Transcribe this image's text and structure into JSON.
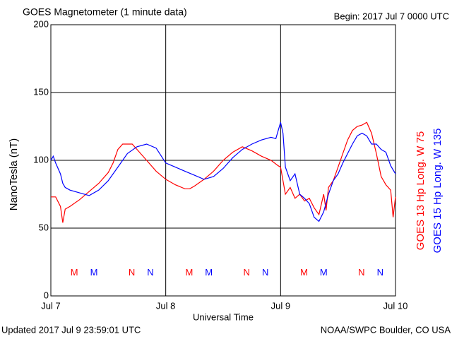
{
  "chart_data": {
    "type": "line",
    "title": "GOES Magnetometer (1 minute data)",
    "subtitle": "Begin:  2017 Jul 7 0000 UTC",
    "xlabel": "Universal Time",
    "ylabel": "NanoTesla (nT)",
    "footer_left": "Updated 2017 Jul  9 23:59:01 UTC",
    "footer_right": "NOAA/SWPC Boulder, CO USA",
    "xlim": [
      0,
      72
    ],
    "xticks": [
      {
        "value": 0,
        "label": "Jul 7"
      },
      {
        "value": 24,
        "label": "Jul 8"
      },
      {
        "value": 48,
        "label": "Jul 9"
      },
      {
        "value": 72,
        "label": "Jul 10"
      }
    ],
    "ylim": [
      0,
      200
    ],
    "yticks": [
      0,
      50,
      100,
      150,
      200
    ],
    "grid": true,
    "series": [
      {
        "name": "GOES 13 Hp  Long. W 75",
        "color": "#ff0000",
        "x": [
          0,
          1,
          2,
          2.5,
          3,
          4,
          6,
          8,
          10,
          12,
          13,
          14,
          15,
          16,
          17,
          18,
          20,
          22,
          24,
          26,
          28,
          29,
          30,
          32,
          34,
          36,
          38,
          40,
          42,
          44,
          46,
          47.5,
          48,
          49,
          50,
          51,
          52,
          53,
          54,
          55,
          56,
          57,
          57.5,
          58,
          59,
          60,
          61,
          62,
          63,
          64,
          65,
          66,
          67,
          68,
          69,
          70,
          71,
          71.5,
          72
        ],
        "values": [
          73,
          73,
          66,
          54,
          64,
          66,
          71,
          77,
          83,
          91,
          98,
          108,
          112,
          112,
          112,
          108,
          100,
          92,
          86,
          82,
          79,
          79,
          81,
          86,
          92,
          100,
          106,
          110,
          107,
          103,
          100,
          96,
          95,
          75,
          80,
          72,
          75,
          70,
          72,
          65,
          60,
          75,
          63,
          80,
          85,
          95,
          105,
          115,
          122,
          125,
          126,
          128,
          120,
          105,
          88,
          82,
          78,
          58,
          73
        ]
      },
      {
        "name": "GOES 15 Hp  Long. W 135",
        "color": "#0000ff",
        "x": [
          0,
          0.5,
          1,
          2,
          2.5,
          3,
          4,
          6,
          8,
          10,
          12,
          14,
          16,
          18,
          20,
          22,
          24,
          26,
          28,
          30,
          32,
          34,
          36,
          38,
          40,
          42,
          44,
          46,
          47,
          47.5,
          48,
          48.5,
          49,
          50,
          51,
          52,
          53,
          54,
          55,
          56,
          57,
          58,
          59,
          60,
          61,
          62,
          63,
          64,
          65,
          66,
          67,
          68,
          69,
          70,
          71,
          72
        ],
        "values": [
          100,
          103,
          98,
          90,
          83,
          80,
          78,
          76,
          74,
          78,
          85,
          95,
          105,
          110,
          112,
          109,
          98,
          95,
          92,
          89,
          86,
          88,
          94,
          102,
          108,
          112,
          115,
          117,
          116,
          122,
          128,
          120,
          95,
          85,
          90,
          75,
          72,
          68,
          58,
          55,
          62,
          75,
          85,
          90,
          98,
          105,
          112,
          118,
          120,
          118,
          112,
          112,
          108,
          106,
          96,
          90
        ]
      }
    ],
    "annotations": [
      {
        "text": "M",
        "x": 4.9,
        "y": 17,
        "series": 0
      },
      {
        "text": "M",
        "x": 9.0,
        "y": 17,
        "series": 1
      },
      {
        "text": "N",
        "x": 16.9,
        "y": 17,
        "series": 0
      },
      {
        "text": "N",
        "x": 20.8,
        "y": 17,
        "series": 1
      },
      {
        "text": "M",
        "x": 28.9,
        "y": 17,
        "series": 0
      },
      {
        "text": "M",
        "x": 33.0,
        "y": 17,
        "series": 1
      },
      {
        "text": "N",
        "x": 40.9,
        "y": 17,
        "series": 0
      },
      {
        "text": "N",
        "x": 44.8,
        "y": 17,
        "series": 1
      },
      {
        "text": "M",
        "x": 52.9,
        "y": 17,
        "series": 0
      },
      {
        "text": "M",
        "x": 57.0,
        "y": 17,
        "series": 1
      },
      {
        "text": "N",
        "x": 64.9,
        "y": 17,
        "series": 0
      },
      {
        "text": "N",
        "x": 68.8,
        "y": 17,
        "series": 1
      }
    ]
  }
}
